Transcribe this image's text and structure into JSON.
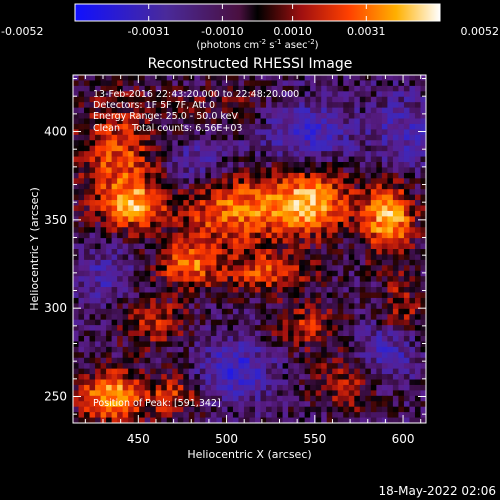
{
  "chart_data": {
    "type": "heatmap",
    "title": "Reconstructed RHESSI Image",
    "xlabel": "Heliocentric X (arcsec)",
    "ylabel": "Heliocentric Y (arcsec)",
    "xlim": [
      413,
      613
    ],
    "ylim": [
      235,
      432
    ],
    "x_ticks": [
      450,
      500,
      550,
      600
    ],
    "y_ticks": [
      250,
      300,
      350,
      400
    ],
    "colorbar": {
      "range": [
        -0.0052,
        0.0052
      ],
      "tick_values": [
        -0.0052,
        -0.0031,
        -0.001,
        0.001,
        0.0031,
        0.0052
      ],
      "tick_labels": [
        "-0.0052",
        "-0.0031",
        "-0.0010",
        "0.0010",
        "0.0031",
        "0.0052"
      ],
      "unit_label_parts": [
        "(photons cm",
        "-2",
        " s",
        "-1",
        " asec",
        "-2",
        ")"
      ]
    },
    "annotations": [
      "13-Feb-2016 22:43:20.000 to 22:48:20.000",
      "Detectors: 1F 5F 7F, Att 0",
      "Energy Range: 25.0 - 50.0 keV",
      "Clean    Total counts: 6.56E+03"
    ],
    "peak_label": "Position of Peak: [591,342]",
    "peak_position": [
      591,
      342
    ],
    "blobs": [
      {
        "x": 505,
        "y": 355,
        "sx": 24,
        "sy": 14,
        "amp": 0.0036
      },
      {
        "x": 548,
        "y": 360,
        "sx": 16,
        "sy": 12,
        "amp": 0.0044
      },
      {
        "x": 592,
        "y": 350,
        "sx": 10,
        "sy": 14,
        "amp": 0.0048
      },
      {
        "x": 478,
        "y": 325,
        "sx": 12,
        "sy": 9,
        "amp": 0.0034
      },
      {
        "x": 522,
        "y": 320,
        "sx": 18,
        "sy": 8,
        "amp": 0.0028
      },
      {
        "x": 438,
        "y": 385,
        "sx": 16,
        "sy": 24,
        "amp": 0.0031
      },
      {
        "x": 448,
        "y": 358,
        "sx": 11,
        "sy": 9,
        "amp": 0.0032
      },
      {
        "x": 435,
        "y": 250,
        "sx": 13,
        "sy": 10,
        "amp": 0.0046
      },
      {
        "x": 470,
        "y": 250,
        "sx": 10,
        "sy": 8,
        "amp": 0.0026
      },
      {
        "x": 458,
        "y": 292,
        "sx": 13,
        "sy": 10,
        "amp": 0.0024
      },
      {
        "x": 545,
        "y": 290,
        "sx": 14,
        "sy": 9,
        "amp": 0.0022
      },
      {
        "x": 568,
        "y": 258,
        "sx": 13,
        "sy": 12,
        "amp": 0.002
      },
      {
        "x": 598,
        "y": 300,
        "sx": 9,
        "sy": 12,
        "amp": 0.0021
      },
      {
        "x": 500,
        "y": 415,
        "sx": 20,
        "sy": 8,
        "amp": 0.0012
      },
      {
        "x": 505,
        "y": 265,
        "sx": 14,
        "sy": 12,
        "amp": -0.0026
      },
      {
        "x": 545,
        "y": 400,
        "sx": 18,
        "sy": 12,
        "amp": -0.0022
      },
      {
        "x": 482,
        "y": 380,
        "sx": 12,
        "sy": 10,
        "amp": -0.0018
      },
      {
        "x": 590,
        "y": 275,
        "sx": 12,
        "sy": 12,
        "amp": -0.0022
      },
      {
        "x": 430,
        "y": 320,
        "sx": 12,
        "sy": 12,
        "amp": -0.0016
      },
      {
        "x": 600,
        "y": 400,
        "sx": 12,
        "sy": 14,
        "amp": -0.0018
      }
    ],
    "background_level": -0.0008,
    "noise_amplitude": 0.0012
  },
  "footer": {
    "timestamp": "18-May-2022 02:06"
  },
  "colors": {
    "background": "#000000",
    "text": "#ffffff",
    "axes": "#ffffff"
  }
}
